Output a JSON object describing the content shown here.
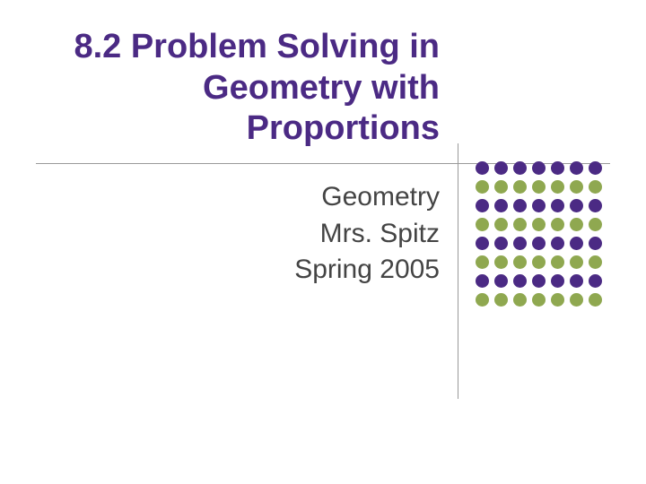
{
  "title": {
    "line1": "8.2 Problem Solving in",
    "line2": "Geometry with",
    "line3": "Proportions",
    "color": "#4b2a84",
    "fontsize": 38
  },
  "subtitle": {
    "line1": "Geometry",
    "line2": "Mrs. Spitz",
    "line3": "Spring 2005",
    "color": "#444444",
    "fontsize": 30
  },
  "divider": {
    "horizontal_color": "#999999",
    "vertical_color": "#999999"
  },
  "dots": {
    "rows": 8,
    "cols": 7,
    "diameter": 15,
    "gap": 6,
    "colors": {
      "row0": "#4b2a84",
      "row1": "#8fa850",
      "row2": "#4b2a84",
      "row3": "#8fa850",
      "row4": "#4b2a84",
      "row5": "#8fa850",
      "row6": "#4b2a84",
      "row7": "#8fa850"
    }
  },
  "background_color": "#ffffff"
}
